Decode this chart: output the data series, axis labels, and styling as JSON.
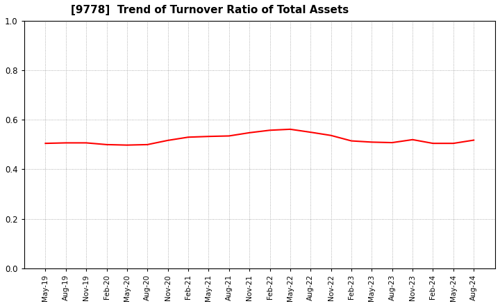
{
  "title": "[9778]  Trend of Turnover Ratio of Total Assets",
  "title_fontsize": 11,
  "title_fontweight": "bold",
  "line_color": "#FF0000",
  "line_width": 1.5,
  "background_color": "#FFFFFF",
  "plot_bg_color": "#FFFFFF",
  "grid_color": "#999999",
  "grid_linestyle": ":",
  "ylim": [
    0.0,
    1.0
  ],
  "yticks": [
    0.0,
    0.2,
    0.4,
    0.6,
    0.8,
    1.0
  ],
  "x_labels": [
    "May-19",
    "Aug-19",
    "Nov-19",
    "Feb-20",
    "May-20",
    "Aug-20",
    "Nov-20",
    "Feb-21",
    "May-21",
    "Aug-21",
    "Nov-21",
    "Feb-22",
    "May-22",
    "Aug-22",
    "Nov-22",
    "Feb-23",
    "May-23",
    "Aug-23",
    "Nov-23",
    "Feb-24",
    "May-24",
    "Aug-24"
  ],
  "values": [
    0.505,
    0.507,
    0.507,
    0.5,
    0.498,
    0.5,
    0.517,
    0.53,
    0.533,
    0.535,
    0.548,
    0.558,
    0.562,
    0.55,
    0.537,
    0.515,
    0.51,
    0.508,
    0.52,
    0.505,
    0.505,
    0.518
  ]
}
